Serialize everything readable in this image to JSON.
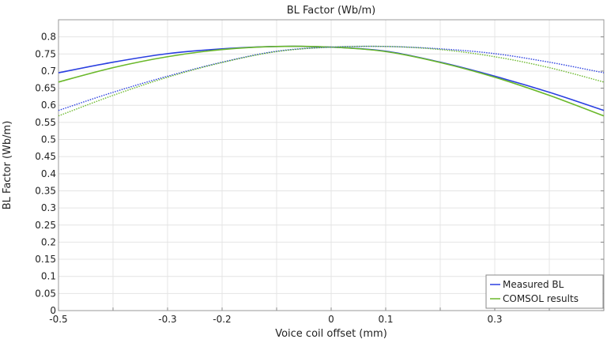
{
  "chart_data": {
    "type": "line",
    "title": "BL Factor (Wb/m)",
    "xlabel": "Voice coil offset (mm)",
    "ylabel": "BL Factor (Wb/m)",
    "xlim": [
      -0.5,
      0.5
    ],
    "ylim": [
      0,
      0.85
    ],
    "grid": true,
    "legend_placement": "bottom-right",
    "x_ticks": [
      "-0.5",
      "-0.3",
      "-0.2",
      "0",
      "0.1",
      "0.3"
    ],
    "x_tick_values": [
      -0.5,
      -0.3,
      -0.2,
      0,
      0.1,
      0.3
    ],
    "y_ticks": [
      "0",
      "0.05",
      "0.1",
      "0.15",
      "0.2",
      "0.25",
      "0.3",
      "0.35",
      "0.4",
      "0.45",
      "0.5",
      "0.55",
      "0.6",
      "0.65",
      "0.7",
      "0.75",
      "0.8"
    ],
    "x": [
      -0.5,
      -0.4,
      -0.3,
      -0.2,
      -0.1,
      0,
      0.1,
      0.2,
      0.3,
      0.4,
      0.5
    ],
    "series": [
      {
        "name": "Measured BL",
        "color": "#2a3fe0",
        "style": "solid",
        "values": [
          0.695,
          0.726,
          0.751,
          0.765,
          0.772,
          0.77,
          0.758,
          0.726,
          0.685,
          0.638,
          0.585
        ]
      },
      {
        "name": "COMSOL results",
        "color": "#6ab82a",
        "style": "solid",
        "values": [
          0.668,
          0.71,
          0.742,
          0.763,
          0.772,
          0.77,
          0.757,
          0.725,
          0.682,
          0.629,
          0.569
        ]
      },
      {
        "color": "#2a3fe0",
        "style": "dotted",
        "values": [
          0.585,
          0.638,
          0.685,
          0.726,
          0.758,
          0.77,
          0.772,
          0.765,
          0.751,
          0.726,
          0.695
        ]
      },
      {
        "color": "#6ab82a",
        "style": "dotted",
        "values": [
          0.569,
          0.629,
          0.682,
          0.725,
          0.757,
          0.77,
          0.772,
          0.763,
          0.742,
          0.71,
          0.668
        ]
      }
    ]
  }
}
